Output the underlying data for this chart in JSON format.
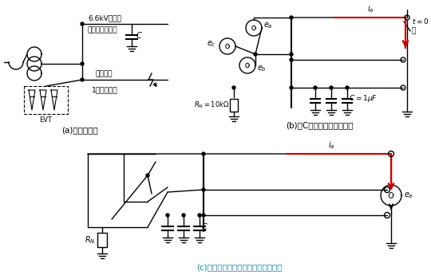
{
  "bg_color": "#ffffff",
  "black": "#000000",
  "red": "#cc0000",
  "cyan": "#1188aa",
  "gray": "#555555",
  "label_a": "(a)　配電系統",
  "label_b": "(b)　Cを考慮した三相回路",
  "label_c": "(c)　テブナンの定理を適用した回路"
}
